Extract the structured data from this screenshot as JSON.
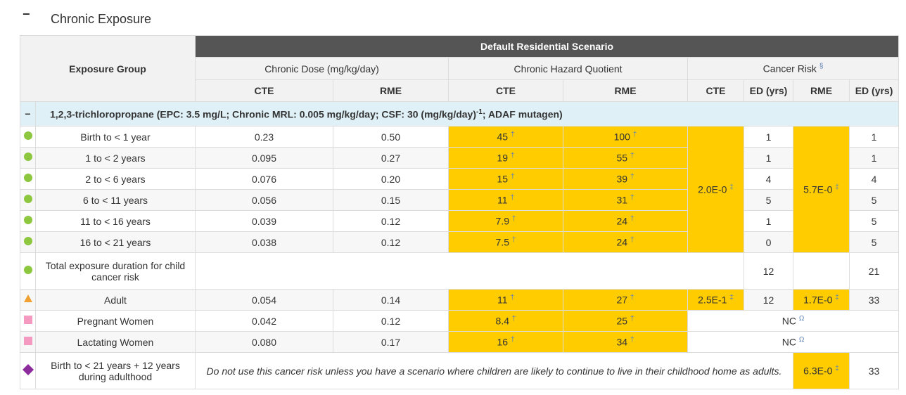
{
  "section": {
    "toggle": "−",
    "title": "Chronic Exposure"
  },
  "table": {
    "headers": {
      "exposure_group": "Exposure Group",
      "scenario": "Default Residential Scenario",
      "dose": "Chronic Dose (mg/kg/day)",
      "hq": "Chronic Hazard Quotient",
      "cancer": "Cancer Risk",
      "cancer_mark": "§",
      "sub": [
        "CTE",
        "RME",
        "CTE",
        "RME",
        "CTE",
        "ED (yrs)",
        "RME",
        "ED (yrs)"
      ]
    },
    "substance": {
      "toggle": "−",
      "text": "1,2,3-trichloropropane (EPC: 3.5 mg/L; Chronic MRL: 0.005 mg/kg/day; CSF: 30 (mg/kg/day)",
      "sup": "-1",
      "rest": "; ADAF mutagen)"
    },
    "marks": {
      "hq": "†",
      "cr": "‡",
      "nc": "Ω"
    },
    "rows": [
      {
        "icon": "circle",
        "group": "Birth to < 1 year",
        "dose_cte": "0.23",
        "dose_rme": "0.50",
        "hq_cte": "45",
        "hq_rme": "100",
        "ed_cte": "1",
        "ed_rme": "1"
      },
      {
        "icon": "circle",
        "group": "1 to < 2 years",
        "dose_cte": "0.095",
        "dose_rme": "0.27",
        "hq_cte": "19",
        "hq_rme": "55",
        "ed_cte": "1",
        "ed_rme": "1"
      },
      {
        "icon": "circle",
        "group": "2 to < 6 years",
        "dose_cte": "0.076",
        "dose_rme": "0.20",
        "hq_cte": "15",
        "hq_rme": "39",
        "ed_cte": "4",
        "ed_rme": "4"
      },
      {
        "icon": "circle",
        "group": "6 to < 11 years",
        "dose_cte": "0.056",
        "dose_rme": "0.15",
        "hq_cte": "11",
        "hq_rme": "31",
        "ed_cte": "5",
        "ed_rme": "5"
      },
      {
        "icon": "circle",
        "group": "11 to < 16 years",
        "dose_cte": "0.039",
        "dose_rme": "0.12",
        "hq_cte": "7.9",
        "hq_rme": "24",
        "ed_cte": "1",
        "ed_rme": "5"
      },
      {
        "icon": "circle",
        "group": "16 to < 21 years",
        "dose_cte": "0.038",
        "dose_rme": "0.12",
        "hq_cte": "7.5",
        "hq_rme": "24",
        "ed_cte": "0",
        "ed_rme": "5"
      }
    ],
    "child_cancer_risk": {
      "cte": "2.0E-0",
      "rme": "5.7E-0"
    },
    "total": {
      "icon": "circle",
      "group": "Total exposure duration for child cancer risk",
      "ed_cte": "12",
      "ed_rme": "21"
    },
    "adult": {
      "icon": "triangle",
      "group": "Adult",
      "dose_cte": "0.054",
      "dose_rme": "0.14",
      "hq_cte": "11",
      "hq_rme": "27",
      "cr_cte": "2.5E-1",
      "ed_cte": "12",
      "cr_rme": "1.7E-0",
      "ed_rme": "33"
    },
    "women": [
      {
        "icon": "square",
        "group": "Pregnant Women",
        "dose_cte": "0.042",
        "dose_rme": "0.12",
        "hq_cte": "8.4",
        "hq_rme": "25",
        "cr": "NC"
      },
      {
        "icon": "square",
        "group": "Lactating Women",
        "dose_cte": "0.080",
        "dose_rme": "0.17",
        "hq_cte": "16",
        "hq_rme": "34",
        "cr": "NC"
      }
    ],
    "combined": {
      "icon": "diamond",
      "group": "Birth to < 21 years + 12 years during adulthood",
      "note": "Do not use this cancer risk unless you have a scenario where children are likely to continue to live in their childhood home as adults.",
      "cr_rme": "6.3E-0",
      "ed_rme": "33"
    }
  }
}
